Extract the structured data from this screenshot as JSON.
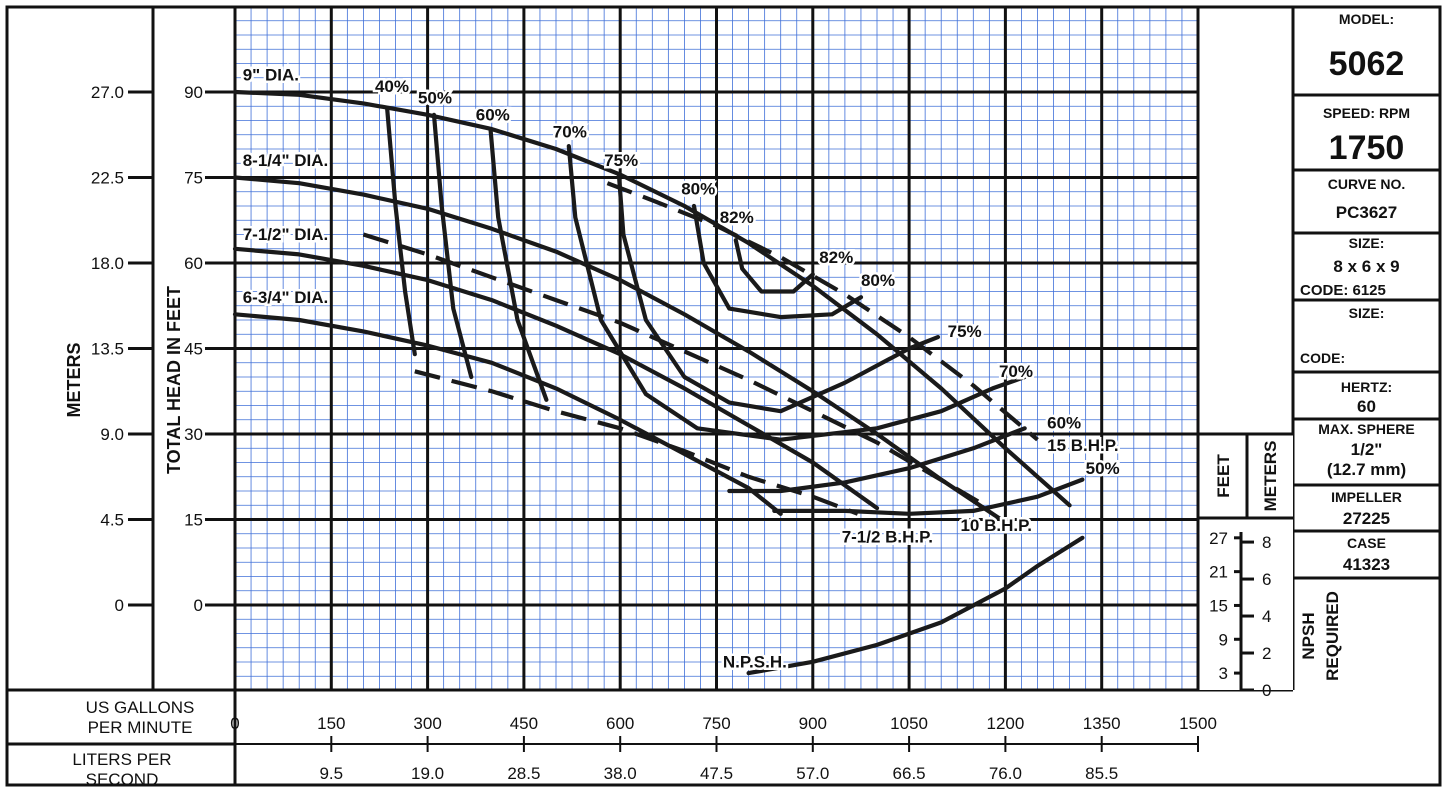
{
  "info_panel": {
    "model_label": "MODEL:",
    "model": "5062",
    "speed_label": "SPEED: RPM",
    "speed": "1750",
    "curve_label": "CURVE NO.",
    "curve": "PC3627",
    "size_label": "SIZE:",
    "size": "8 x 6 x 9",
    "code_line": "CODE: 6125",
    "size2_label": "SIZE:",
    "code2_label": "CODE:",
    "hertz_label": "HERTZ:",
    "hertz": "60",
    "sphere_label": "MAX. SPHERE",
    "sphere_in": "1/2\"",
    "sphere_mm": "(12.7 mm)",
    "impeller_label": "IMPELLER",
    "impeller": "27225",
    "case_label": "CASE",
    "case": "41323"
  },
  "chart_data": {
    "type": "line",
    "xlabel": "US GALLONS PER MINUTE",
    "xlabel_lines": [
      "US GALLONS",
      "PER MINUTE"
    ],
    "x2label_lines": [
      "LITERS PER",
      "SECOND"
    ],
    "ylabel": "TOTAL HEAD IN FEET",
    "y2label": "METERS",
    "xlim": [
      0,
      1500
    ],
    "ylim": [
      -30,
      105
    ],
    "grid": true,
    "x_ticks": [
      "0",
      "150",
      "300",
      "450",
      "600",
      "750",
      "900",
      "1050",
      "1200",
      "1350",
      "1500"
    ],
    "x_tick_values": [
      0,
      150,
      300,
      450,
      600,
      750,
      900,
      1050,
      1200,
      1350,
      1500
    ],
    "lps_ticks": [
      "9.5",
      "19.0",
      "28.5",
      "38.0",
      "47.5",
      "57.0",
      "66.5",
      "76.0",
      "85.5"
    ],
    "lps_tick_gpm": [
      150,
      300,
      450,
      600,
      750,
      900,
      1050,
      1200,
      1350
    ],
    "y_ticks": [
      "0",
      "15",
      "30",
      "45",
      "60",
      "75",
      "90"
    ],
    "y_tick_values": [
      0,
      15,
      30,
      45,
      60,
      75,
      90
    ],
    "meters_ticks": [
      "0",
      "4.5",
      "9.0",
      "13.5",
      "18.0",
      "22.5",
      "27.0"
    ],
    "meters_tick_feet": [
      0,
      15,
      30,
      45,
      60,
      75,
      90
    ],
    "npsh": {
      "feet_label": "FEET",
      "meters_label": "METERS",
      "required_label": "REQUIRED",
      "npsh_label": "NPSH",
      "feet_ticks": [
        "27",
        "21",
        "15",
        "9",
        "3"
      ],
      "feet_tick_values": [
        27,
        21,
        15,
        9,
        3
      ],
      "meters_ticks": [
        "8",
        "6",
        "4",
        "2",
        "0"
      ],
      "meters_tick_values": [
        8,
        6,
        4,
        2,
        0
      ],
      "range_ft": [
        0,
        30
      ]
    },
    "series": [
      {
        "name": "9\" DIA.",
        "kind": "head",
        "x": [
          0,
          100,
          200,
          300,
          400,
          500,
          600,
          700,
          800,
          900,
          1000,
          1100,
          1200,
          1300
        ],
        "y": [
          90,
          89.5,
          88,
          86,
          83.5,
          80,
          75.5,
          70,
          63.5,
          56,
          47.5,
          38,
          27.5,
          17.5
        ]
      },
      {
        "name": "8-1/4\" DIA.",
        "kind": "head",
        "x": [
          0,
          100,
          200,
          300,
          400,
          500,
          600,
          700,
          800,
          900,
          1000,
          1100,
          1200
        ],
        "y": [
          75,
          74,
          72,
          69.5,
          66,
          62,
          57,
          51,
          44.5,
          37.5,
          30,
          22,
          14.5
        ]
      },
      {
        "name": "7-1/2\" DIA.",
        "kind": "head",
        "x": [
          0,
          100,
          200,
          300,
          400,
          500,
          600,
          700,
          800,
          900,
          1000
        ],
        "y": [
          62.5,
          61.5,
          59.5,
          57,
          53.5,
          49,
          44,
          38,
          31.5,
          25,
          17
        ]
      },
      {
        "name": "6-3/4\" DIA.",
        "kind": "head",
        "x": [
          0,
          100,
          200,
          300,
          400,
          500,
          600,
          700,
          800,
          850
        ],
        "y": [
          51,
          50,
          48,
          45.5,
          42.5,
          38,
          32.5,
          26.5,
          20.5,
          16
        ]
      },
      {
        "name": "40%",
        "kind": "efficiency",
        "x": [
          237,
          250,
          265,
          280
        ],
        "y": [
          87,
          70,
          55,
          44
        ]
      },
      {
        "name": "50%",
        "kind": "efficiency",
        "x": [
          310,
          322,
          340,
          368
        ],
        "y": [
          86,
          70,
          52,
          40
        ]
      },
      {
        "name": "60%",
        "kind": "efficiency",
        "x": [
          398,
          410,
          440,
          485
        ],
        "y": [
          83.5,
          68,
          50,
          36
        ]
      },
      {
        "name": "70%",
        "kind": "efficiency",
        "x": [
          520,
          530,
          570,
          640,
          720,
          850,
          1000,
          1100,
          1180,
          1230
        ],
        "y": [
          80.5,
          68,
          50,
          37,
          31,
          29,
          31,
          34,
          38,
          40
        ]
      },
      {
        "name": "75%",
        "kind": "efficiency",
        "x": [
          598,
          605,
          640,
          700,
          770,
          850,
          950,
          1050,
          1095
        ],
        "y": [
          75.5,
          65,
          50,
          40,
          35.5,
          34,
          39,
          45,
          47
        ]
      },
      {
        "name": "80%",
        "kind": "efficiency",
        "x": [
          715,
          730,
          770,
          850,
          930,
          975
        ],
        "y": [
          70,
          60,
          52,
          50.5,
          51,
          54
        ]
      },
      {
        "name": "82%",
        "kind": "efficiency",
        "x": [
          780,
          790,
          820,
          870,
          900
        ],
        "y": [
          64,
          59,
          55,
          55,
          58
        ]
      },
      {
        "name": "60%",
        "kind": "efficiency",
        "x": [
          770,
          850,
          950,
          1050,
          1150,
          1230
        ],
        "y": [
          20,
          20,
          21.5,
          24,
          27.5,
          31
        ]
      },
      {
        "name": "50%",
        "kind": "efficiency",
        "x": [
          840,
          950,
          1050,
          1150,
          1250,
          1320
        ],
        "y": [
          16.5,
          16.5,
          16,
          16.5,
          19,
          22
        ]
      },
      {
        "name": "7-1/2 B.H.P.",
        "kind": "power",
        "x": [
          280,
          400,
          500,
          600,
          700,
          800,
          900,
          970
        ],
        "y": [
          41,
          37.5,
          34,
          31,
          27,
          22.5,
          19,
          16
        ]
      },
      {
        "name": "10 B.H.P.",
        "kind": "power",
        "x": [
          200,
          300,
          400,
          500,
          600,
          700,
          800,
          900,
          1000,
          1160
        ],
        "y": [
          65,
          61.5,
          57.5,
          53.5,
          49.5,
          44.5,
          39.5,
          34,
          28.5,
          18
        ]
      },
      {
        "name": "15 B.H.P.",
        "kind": "power",
        "x": [
          580,
          650,
          750,
          850,
          950,
          1050,
          1150,
          1250
        ],
        "y": [
          74,
          71,
          66.5,
          61,
          54.5,
          47,
          38.5,
          29
        ]
      },
      {
        "name": "N.P.S.H.",
        "kind": "npsh",
        "x": [
          800,
          900,
          1000,
          1100,
          1200,
          1250,
          1320
        ],
        "y": [
          3,
          5,
          8,
          12,
          18,
          22,
          27
        ]
      }
    ],
    "annotations": [
      {
        "text": "9\" DIA.",
        "x": 12,
        "y": 92
      },
      {
        "text": "8-1/4\" DIA.",
        "x": 12,
        "y": 77
      },
      {
        "text": "7-1/2\" DIA.",
        "x": 12,
        "y": 64
      },
      {
        "text": "6-3/4\" DIA.",
        "x": 12,
        "y": 53
      },
      {
        "text": "40%",
        "x": 218,
        "y": 90
      },
      {
        "text": "50%",
        "x": 285,
        "y": 88
      },
      {
        "text": "60%",
        "x": 375,
        "y": 85
      },
      {
        "text": "70%",
        "x": 495,
        "y": 82
      },
      {
        "text": "75%",
        "x": 575,
        "y": 77
      },
      {
        "text": "80%",
        "x": 695,
        "y": 72
      },
      {
        "text": "82%",
        "x": 755,
        "y": 67
      },
      {
        "text": "82%",
        "x": 910,
        "y": 60
      },
      {
        "text": "80%",
        "x": 975,
        "y": 56
      },
      {
        "text": "75%",
        "x": 1110,
        "y": 47
      },
      {
        "text": "70%",
        "x": 1190,
        "y": 40
      },
      {
        "text": "60%",
        "x": 1265,
        "y": 31
      },
      {
        "text": "15 B.H.P.",
        "x": 1265,
        "y": 27
      },
      {
        "text": "50%",
        "x": 1325,
        "y": 23
      },
      {
        "text": "7-1/2 B.H.P.",
        "x": 945,
        "y": 11
      },
      {
        "text": "10 B.H.P.",
        "x": 1130,
        "y": 13
      },
      {
        "text": "N.P.S.H.",
        "x": 760,
        "y": 4
      }
    ]
  }
}
